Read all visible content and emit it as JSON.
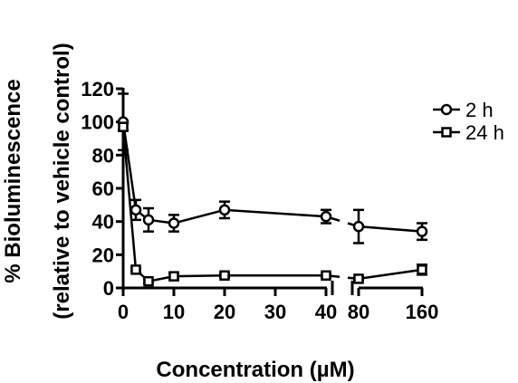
{
  "chart_data": {
    "type": "line",
    "title": "",
    "xlabel": "Concentration (µM)",
    "ylabel_line1": "% Bioluminescence",
    "ylabel_line2": "(relative to vehicle control)",
    "x_scale": "broken",
    "x_segments": [
      {
        "range": [
          0,
          40
        ],
        "ticks": [
          0,
          10,
          20,
          30,
          40
        ]
      },
      {
        "range": [
          80,
          160
        ],
        "ticks": [
          80,
          160
        ]
      }
    ],
    "ylim": [
      0,
      120
    ],
    "yticks": [
      0,
      20,
      40,
      60,
      80,
      100,
      120
    ],
    "legend_position": "right",
    "series": [
      {
        "name": "2 h",
        "marker": "circle",
        "points": [
          {
            "x": 0,
            "y": 100,
            "err": 17
          },
          {
            "x": 2.5,
            "y": 47,
            "err": 6
          },
          {
            "x": 5,
            "y": 41,
            "err": 7
          },
          {
            "x": 10,
            "y": 39,
            "err": 5
          },
          {
            "x": 20,
            "y": 47,
            "err": 5
          },
          {
            "x": 40,
            "y": 43,
            "err": 4
          },
          {
            "x": 80,
            "y": 37,
            "err": 10
          },
          {
            "x": 160,
            "y": 34,
            "err": 5
          }
        ]
      },
      {
        "name": "24 h",
        "marker": "square",
        "points": [
          {
            "x": 0,
            "y": 97,
            "err": 2
          },
          {
            "x": 2.5,
            "y": 11,
            "err": 1
          },
          {
            "x": 5,
            "y": 4,
            "err": 1
          },
          {
            "x": 10,
            "y": 7,
            "err": 2
          },
          {
            "x": 20,
            "y": 7.5,
            "err": 1
          },
          {
            "x": 40,
            "y": 7.5,
            "err": 1
          },
          {
            "x": 80,
            "y": 5.5,
            "err": 1
          },
          {
            "x": 160,
            "y": 11,
            "err": 3
          }
        ]
      }
    ]
  }
}
